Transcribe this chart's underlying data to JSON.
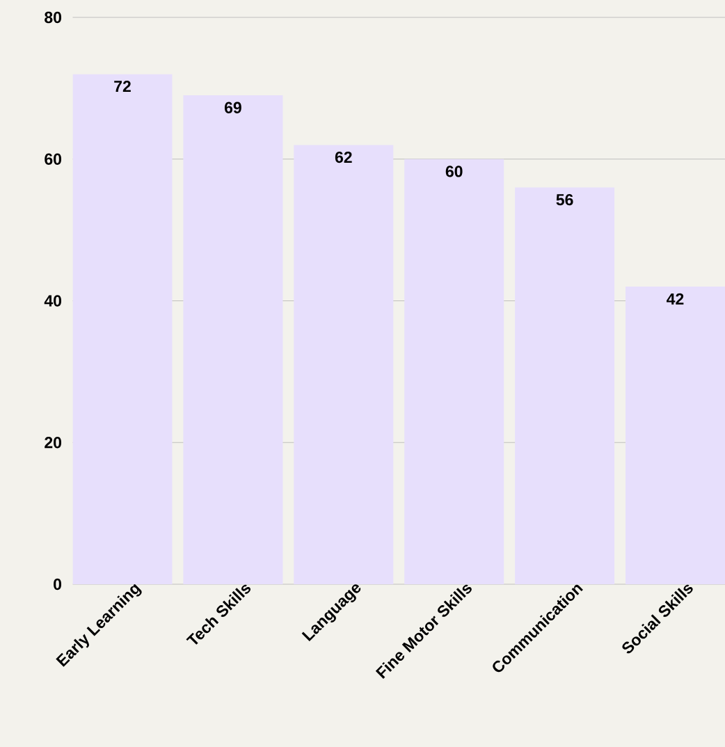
{
  "chart_data": {
    "type": "bar",
    "categories": [
      "Early Learning",
      "Tech Skills",
      "Language",
      "Fine Motor Skills",
      "Communication",
      "Social Skills"
    ],
    "values": [
      72,
      69,
      62,
      60,
      56,
      42
    ],
    "color": "#e7dffc",
    "ylim": [
      0,
      80
    ],
    "yticks": [
      0,
      20,
      40,
      60,
      80
    ],
    "grid": "y",
    "data_labels": true
  }
}
